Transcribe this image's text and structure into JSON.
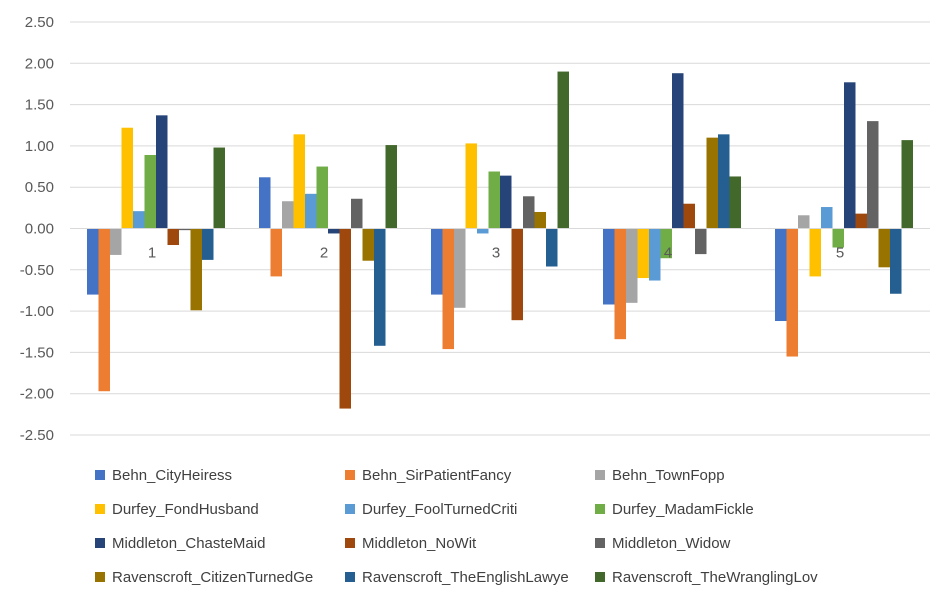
{
  "chart_data": {
    "type": "bar",
    "categories": [
      "1",
      "2",
      "3",
      "4",
      "5"
    ],
    "ylim": [
      -2.5,
      2.5
    ],
    "yticks": [
      "2.50",
      "2.00",
      "1.50",
      "1.00",
      "0.50",
      "0.00",
      "-0.50",
      "-1.00",
      "-1.50",
      "-2.00",
      "-2.50"
    ],
    "grid": true,
    "legend_position": "bottom",
    "series": [
      {
        "name": "Behn_CityHeiress",
        "color": "#4472C4",
        "values": [
          -0.8,
          0.62,
          -0.8,
          -0.92,
          -1.12
        ]
      },
      {
        "name": "Behn_SirPatientFancy",
        "color": "#ED7D31",
        "values": [
          -1.97,
          -0.58,
          -1.46,
          -1.34,
          -1.55
        ]
      },
      {
        "name": "Behn_TownFopp",
        "color": "#A5A5A5",
        "values": [
          -0.32,
          0.33,
          -0.96,
          -0.9,
          0.16
        ]
      },
      {
        "name": "Durfey_FondHusband",
        "color": "#FFC000",
        "values": [
          1.22,
          1.14,
          1.03,
          -0.6,
          -0.58
        ]
      },
      {
        "name": "Durfey_FoolTurnedCriti",
        "color": "#5B9BD5",
        "values": [
          0.21,
          0.42,
          -0.06,
          -0.63,
          0.26
        ]
      },
      {
        "name": "Durfey_MadamFickle",
        "color": "#70AD47",
        "values": [
          0.89,
          0.75,
          0.69,
          -0.36,
          -0.23
        ]
      },
      {
        "name": "Middleton_ChasteMaid",
        "color": "#264478",
        "values": [
          1.37,
          -0.06,
          0.64,
          1.88,
          1.77
        ]
      },
      {
        "name": "Middleton_NoWit",
        "color": "#9E480E",
        "values": [
          -0.2,
          -2.18,
          -1.11,
          0.3,
          0.18
        ]
      },
      {
        "name": "Middleton_Widow",
        "color": "#636363",
        "values": [
          -0.02,
          0.36,
          0.39,
          -0.31,
          1.3
        ]
      },
      {
        "name": "Ravenscroft_CitizenTurnedGe",
        "color": "#997300",
        "values": [
          -0.99,
          -0.39,
          0.2,
          1.1,
          -0.47
        ]
      },
      {
        "name": "Ravenscroft_TheEnglishLawye",
        "color": "#255E91",
        "values": [
          -0.38,
          -1.42,
          -0.46,
          1.14,
          -0.79
        ]
      },
      {
        "name": "Ravenscroft_TheWranglingLov",
        "color": "#43682B",
        "values": [
          0.98,
          1.01,
          1.9,
          0.63,
          1.07
        ]
      }
    ]
  }
}
